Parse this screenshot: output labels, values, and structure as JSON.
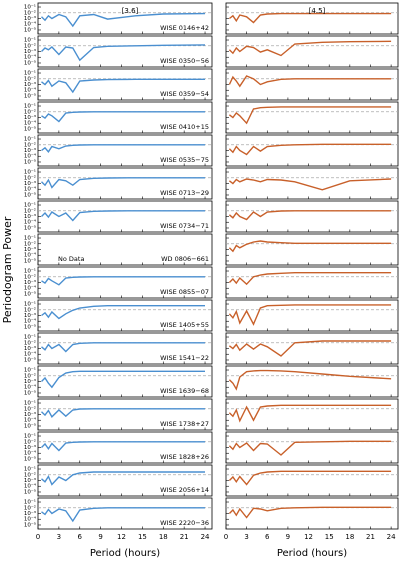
{
  "chart_data": {
    "type": "line",
    "xlabel": "Period (hours)",
    "ylabel": "Periodogram Power",
    "xlim": [
      0,
      25
    ],
    "xticks": [
      0,
      3,
      6,
      9,
      12,
      15,
      18,
      21,
      24
    ],
    "ylim": [
      2e-06,
      0.5
    ],
    "log_y": true,
    "yticks": [
      {
        "value": 0.1,
        "label": "10⁻¹"
      },
      {
        "value": 0.01,
        "label": "10⁻²"
      },
      {
        "value": 0.001,
        "label": "10⁻³"
      },
      {
        "value": 0.0001,
        "label": "10⁻⁴"
      },
      {
        "value": 1e-05,
        "label": "10⁻⁵"
      }
    ],
    "threshold": 0.01,
    "threshold_color": "#aaaaaa",
    "columns": [
      {
        "name": "[3.6]",
        "color": "#4a8fd0"
      },
      {
        "name": "[4.5]",
        "color": "#c8602a"
      }
    ],
    "x": [
      0.5,
      1,
      1.5,
      2,
      3,
      4,
      5,
      6,
      8,
      10,
      14,
      18,
      24
    ],
    "panels": [
      {
        "name": "WISE 0146+42",
        "left": [
          0.002,
          0.0005,
          0.003,
          0.001,
          0.005,
          0.002,
          5e-05,
          0.003,
          0.005,
          0.0008,
          0.003,
          0.006,
          0.007
        ],
        "right": [
          0.001,
          0.003,
          0.0004,
          0.004,
          0.002,
          0.0002,
          0.004,
          0.006,
          0.007,
          0.007,
          0.007,
          0.007,
          0.007
        ]
      },
      {
        "name": "WISE 0350−56",
        "left": [
          0.001,
          0.004,
          0.002,
          0.006,
          0.0003,
          0.006,
          0.004,
          3e-05,
          0.005,
          0.008,
          0.01,
          0.012,
          0.014
        ],
        "right": [
          0.002,
          0.0005,
          0.004,
          0.001,
          0.008,
          0.005,
          0.0008,
          0.002,
          0.0002,
          0.02,
          0.04,
          0.05,
          0.06
        ]
      },
      {
        "name": "WISE 0359−54",
        "left": [
          0.003,
          0.001,
          0.005,
          0.0005,
          0.004,
          0.002,
          5e-05,
          0.004,
          0.006,
          0.007,
          0.008,
          0.008,
          0.008
        ],
        "right": [
          0.001,
          0.02,
          0.004,
          0.0005,
          0.03,
          0.01,
          0.001,
          0.003,
          0.008,
          0.01,
          0.01,
          0.01,
          0.01
        ]
      },
      {
        "name": "WISE 0410+15",
        "left": [
          0.002,
          0.0008,
          0.004,
          0.002,
          0.0002,
          0.006,
          0.008,
          0.009,
          0.01,
          0.01,
          0.01,
          0.01,
          0.01
        ],
        "right": [
          0.003,
          0.001,
          0.006,
          0.002,
          0.0001,
          0.03,
          0.05,
          0.06,
          0.07,
          0.07,
          0.07,
          0.07,
          0.07
        ]
      },
      {
        "name": "WISE 0535−75",
        "left": [
          0.001,
          0.003,
          0.0006,
          0.005,
          0.002,
          0.006,
          0.008,
          0.009,
          0.01,
          0.01,
          0.01,
          0.01,
          0.01
        ],
        "right": [
          0.002,
          0.0005,
          0.005,
          0.001,
          0.0002,
          0.005,
          0.0008,
          0.005,
          0.008,
          0.01,
          0.012,
          0.012,
          0.012
        ]
      },
      {
        "name": "WISE 0713−29",
        "left": [
          0.002,
          0.0005,
          0.004,
          0.0002,
          0.005,
          0.003,
          0.0005,
          0.005,
          0.008,
          0.009,
          0.01,
          0.01,
          0.01
        ],
        "right": [
          0.003,
          0.001,
          0.005,
          0.002,
          0.006,
          0.004,
          0.002,
          0.005,
          0.004,
          0.002,
          8e-05,
          0.003,
          0.006
        ]
      },
      {
        "name": "WISE 0734−71",
        "left": [
          0.001,
          0.004,
          0.0008,
          0.006,
          0.001,
          0.004,
          0.0002,
          0.005,
          0.008,
          0.009,
          0.01,
          0.01,
          0.01
        ],
        "right": [
          0.002,
          0.0006,
          0.004,
          0.001,
          0.0003,
          0.006,
          0.001,
          0.006,
          0.009,
          0.01,
          0.01,
          0.01,
          0.01
        ]
      },
      {
        "name": "WD 0806−661",
        "left": null,
        "note": "No Data",
        "right": [
          0.002,
          0.0005,
          0.005,
          0.002,
          0.008,
          0.02,
          0.03,
          0.02,
          0.015,
          0.012,
          0.012,
          0.012,
          0.012
        ]
      },
      {
        "name": "WISE 0855−07",
        "left": [
          0.002,
          0.0008,
          0.005,
          0.002,
          0.0004,
          0.006,
          0.008,
          0.009,
          0.01,
          0.01,
          0.01,
          0.01,
          0.01
        ],
        "right": [
          0.001,
          0.004,
          0.0008,
          0.006,
          0.0005,
          0.01,
          0.02,
          0.03,
          0.04,
          0.05,
          0.05,
          0.05,
          0.05
        ]
      },
      {
        "name": "WISE 1405+55",
        "left": [
          0.001,
          0.003,
          0.0005,
          0.004,
          0.0003,
          0.002,
          0.008,
          0.02,
          0.04,
          0.05,
          0.05,
          0.05,
          0.05
        ],
        "right": [
          0.002,
          0.0004,
          0.005,
          5e-05,
          0.006,
          3e-05,
          0.02,
          0.05,
          0.06,
          0.07,
          0.07,
          0.07,
          0.07
        ]
      },
      {
        "name": "WISE 1541−22",
        "left": [
          0.002,
          0.0006,
          0.005,
          0.001,
          0.005,
          0.0003,
          0.005,
          0.008,
          0.01,
          0.01,
          0.01,
          0.01,
          0.01
        ],
        "right": [
          0.003,
          0.001,
          0.005,
          0.0005,
          0.006,
          0.0008,
          0.006,
          0.002,
          5e-05,
          0.01,
          0.02,
          0.02,
          0.02
        ]
      },
      {
        "name": "WISE 1639−68",
        "left": [
          0.001,
          0.004,
          0.0005,
          0.0001,
          0.005,
          0.03,
          0.05,
          0.06,
          0.06,
          0.06,
          0.06,
          0.06,
          0.06
        ],
        "right": [
          0.002,
          0.0005,
          5e-05,
          0.006,
          0.05,
          0.07,
          0.08,
          0.08,
          0.07,
          0.05,
          0.02,
          0.008,
          0.003
        ]
      },
      {
        "name": "WISE 1738+27",
        "left": [
          0.003,
          0.0008,
          0.005,
          0.0004,
          0.006,
          0.0005,
          0.006,
          0.009,
          0.01,
          0.01,
          0.01,
          0.01,
          0.01
        ],
        "right": [
          0.002,
          0.0005,
          0.006,
          8e-05,
          0.02,
          0.0001,
          0.02,
          0.03,
          0.04,
          0.04,
          0.04,
          0.04,
          0.04
        ]
      },
      {
        "name": "WISE 1828+26",
        "left": [
          0.001,
          0.004,
          0.0006,
          0.005,
          0.0003,
          0.006,
          0.008,
          0.009,
          0.01,
          0.01,
          0.01,
          0.01,
          0.01
        ],
        "right": [
          0.002,
          0.0005,
          0.005,
          0.001,
          0.006,
          0.0003,
          0.005,
          0.004,
          5e-05,
          0.008,
          0.01,
          0.012,
          0.012
        ]
      },
      {
        "name": "WISE 2056+14",
        "left": [
          0.002,
          0.0006,
          0.005,
          0.0002,
          0.004,
          0.001,
          0.01,
          0.02,
          0.03,
          0.03,
          0.03,
          0.03,
          0.03
        ],
        "right": [
          0.001,
          0.004,
          0.0006,
          0.005,
          0.0002,
          0.008,
          0.02,
          0.03,
          0.04,
          0.04,
          0.04,
          0.04,
          0.04
        ]
      },
      {
        "name": "WISE 2220−36",
        "left": [
          0.002,
          0.0007,
          0.005,
          0.001,
          0.006,
          0.003,
          5e-05,
          0.004,
          0.008,
          0.01,
          0.01,
          0.01,
          0.01
        ],
        "right": [
          0.001,
          0.004,
          0.0005,
          0.006,
          0.0002,
          0.008,
          0.006,
          0.003,
          0.008,
          0.01,
          0.012,
          0.012,
          0.012
        ]
      }
    ]
  }
}
